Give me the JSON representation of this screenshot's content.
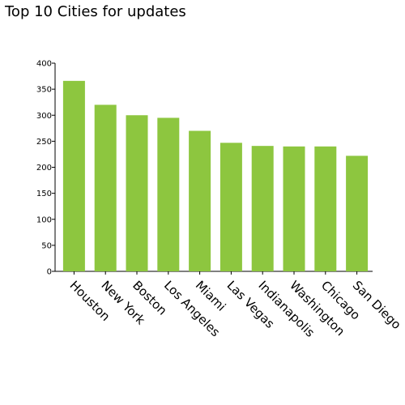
{
  "chart_data": {
    "type": "bar",
    "title": "Top 10 Cities for updates",
    "xlabel": "",
    "ylabel": "",
    "categories": [
      "Houston",
      "New York",
      "Boston",
      "Los Angeles",
      "Miami",
      "Las Vegas",
      "Indianapolis",
      "Washington",
      "Chicago",
      "San Diego"
    ],
    "values": [
      366,
      320,
      300,
      295,
      270,
      247,
      241,
      240,
      240,
      222
    ],
    "ylim": [
      0,
      400
    ],
    "yticks": [
      0,
      50,
      100,
      150,
      200,
      250,
      300,
      350,
      400
    ],
    "grid": false,
    "legend": "none",
    "bar_color": "#8dc63f"
  }
}
